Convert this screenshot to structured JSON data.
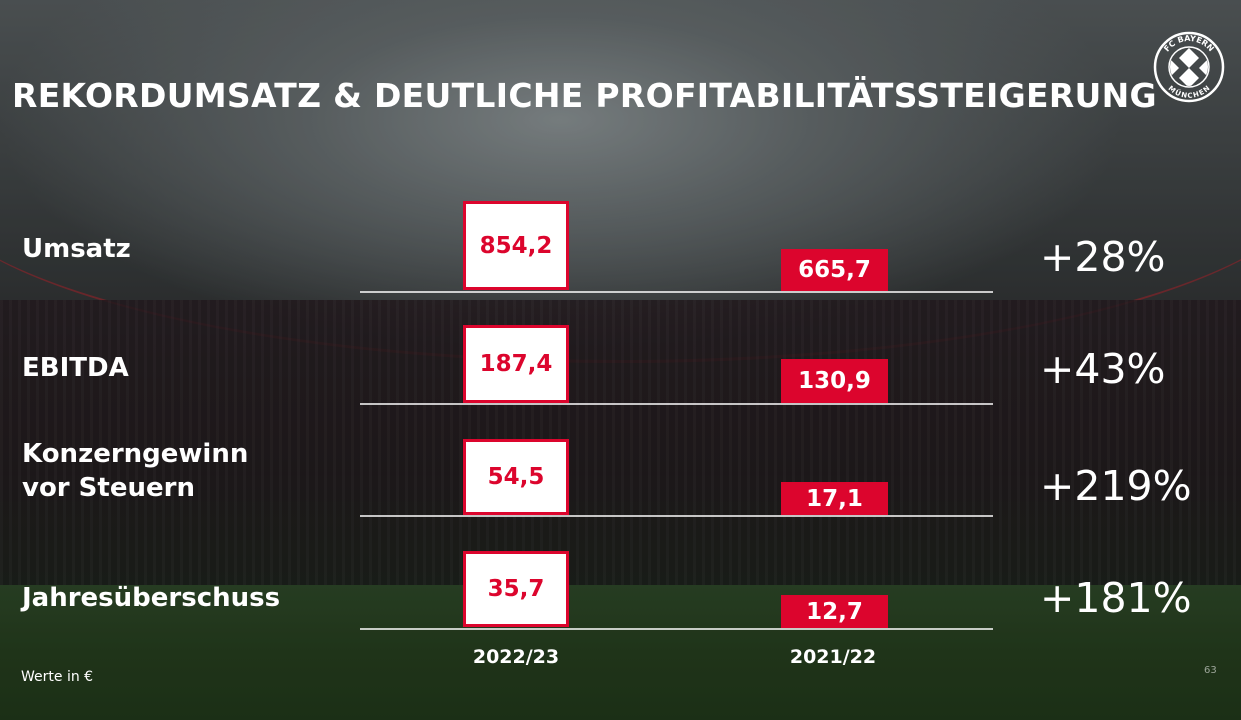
{
  "title": "REKORDUMSATZ & DEUTLICHE PROFITABILITÄTSSTEIGERUNG",
  "logo": {
    "text_top": "FC BAYERN",
    "text_bottom": "MÜNCHEN",
    "icon": "fc-bayern-crest-icon"
  },
  "colors": {
    "accent": "#dc052d",
    "text": "#ffffff",
    "box_bg": "#ffffff"
  },
  "chart_data": {
    "type": "bar",
    "unit_note": "Werte in €",
    "series": [
      {
        "name": "2022/23",
        "values": [
          854.2,
          187.4,
          54.5,
          35.7
        ],
        "labels": [
          "854,2",
          "187,4",
          "54,5",
          "35,7"
        ]
      },
      {
        "name": "2021/22",
        "values": [
          665.7,
          130.9,
          17.1,
          12.7
        ],
        "labels": [
          "665,7",
          "130,9",
          "17,1",
          "12,7"
        ]
      }
    ],
    "rows": [
      {
        "label_lines": [
          "Umsatz"
        ],
        "cur": "854,2",
        "prev": "665,7",
        "change": "+28%"
      },
      {
        "label_lines": [
          "EBITDA"
        ],
        "cur": "187,4",
        "prev": "130,9",
        "change": "+43%"
      },
      {
        "label_lines": [
          "Konzerngewinn",
          "vor Steuern"
        ],
        "cur": "54,5",
        "prev": "17,1",
        "change": "+219%"
      },
      {
        "label_lines": [
          "Jahresüberschuss"
        ],
        "cur": "35,7",
        "prev": "12,7",
        "change": "+181%"
      }
    ]
  },
  "footnote": "Werte in €",
  "page_number": "63"
}
